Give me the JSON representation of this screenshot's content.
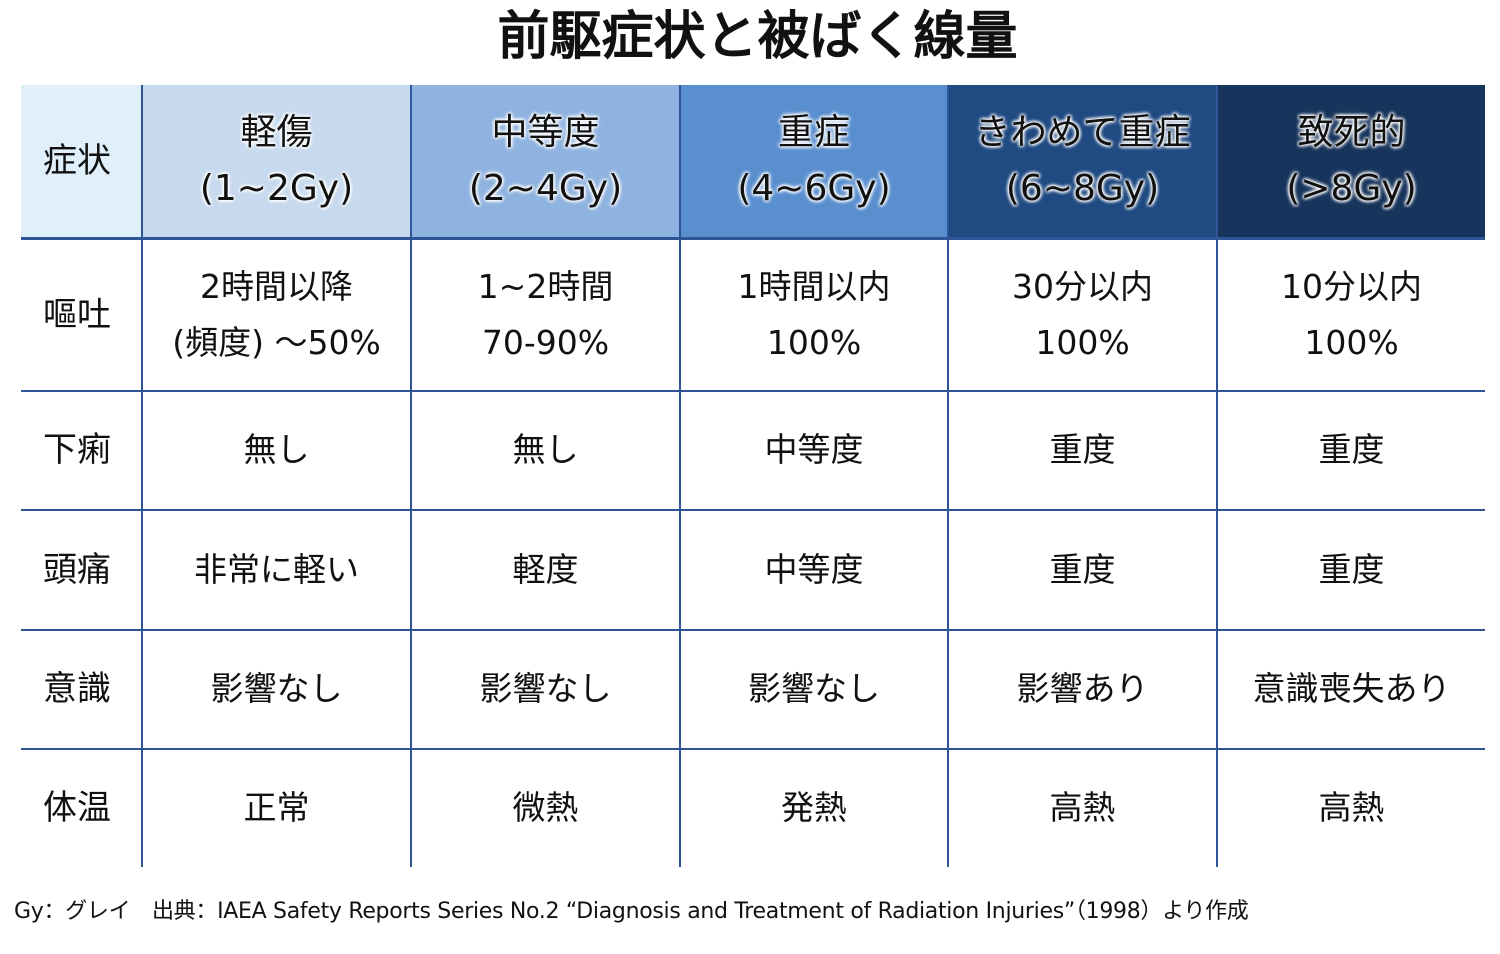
{
  "title": "前駆症状と被ばく線量",
  "header": {
    "corner": "症状",
    "columns": [
      {
        "name": "軽傷",
        "range": "(1~2Gy)",
        "color": "#c6d9ee"
      },
      {
        "name": "中等度",
        "range": "(2~4Gy)",
        "color": "#8fb3e0"
      },
      {
        "name": "重症",
        "range": "(4~6Gy)",
        "color": "#5a8fcf"
      },
      {
        "name": "きわめて重症",
        "range": "(6~8Gy)",
        "color": "#1f4a82"
      },
      {
        "name": "致死的",
        "range": "(>8Gy)",
        "color": "#17345c"
      }
    ]
  },
  "rows": [
    {
      "label": "嘔吐",
      "cells": [
        [
          "2時間以降",
          "(頻度) ～50%"
        ],
        [
          "1~2時間",
          "70-90%"
        ],
        [
          "1時間以内",
          "100%"
        ],
        [
          "30分以内",
          "100%"
        ],
        [
          "10分以内",
          "100%"
        ]
      ]
    },
    {
      "label": "下痢",
      "cells": [
        [
          "無し"
        ],
        [
          "無し"
        ],
        [
          "中等度"
        ],
        [
          "重度"
        ],
        [
          "重度"
        ]
      ]
    },
    {
      "label": "頭痛",
      "cells": [
        [
          "非常に軽い"
        ],
        [
          "軽度"
        ],
        [
          "中等度"
        ],
        [
          "重度"
        ],
        [
          "重度"
        ]
      ]
    },
    {
      "label": "意識",
      "cells": [
        [
          "影響なし"
        ],
        [
          "影響なし"
        ],
        [
          "影響なし"
        ],
        [
          "影響あり"
        ],
        [
          "意識喪失あり"
        ]
      ]
    },
    {
      "label": "体温",
      "cells": [
        [
          "正常"
        ],
        [
          "微熱"
        ],
        [
          "発熱"
        ],
        [
          "高熱"
        ],
        [
          "高熱"
        ]
      ]
    }
  ],
  "footer": "Gy：グレイ　出典：IAEA Safety Reports Series No.2 “Diagnosis and Treatment of Radiation Injuries”（1998）より作成"
}
